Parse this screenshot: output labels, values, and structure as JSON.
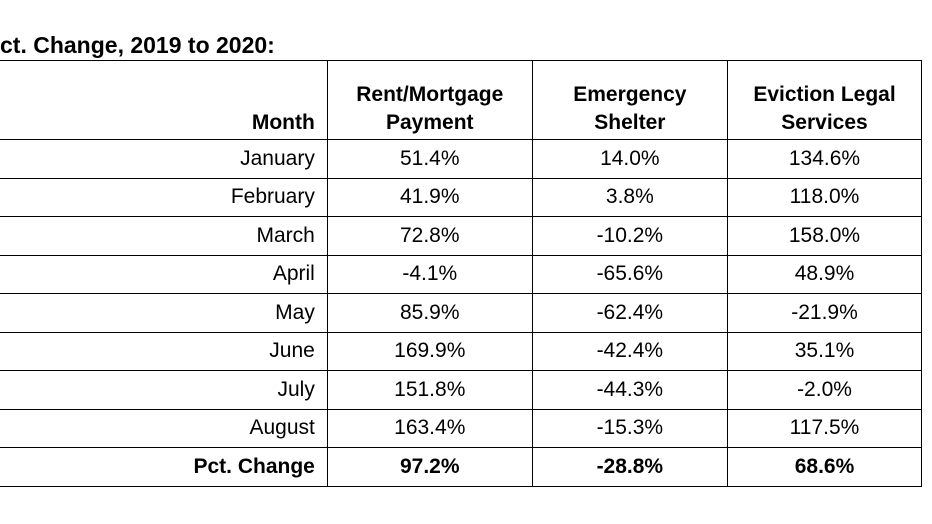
{
  "title": "ct. Change, 2019 to 2020:",
  "table": {
    "headers": [
      "Month",
      "Rent/Mortgage Payment",
      "Emergency Shelter",
      "Eviction Legal Services"
    ],
    "rows": [
      {
        "month": "January",
        "rent": "51.4%",
        "shelter": "14.0%",
        "eviction": "134.6%"
      },
      {
        "month": "February",
        "rent": "41.9%",
        "shelter": "3.8%",
        "eviction": "118.0%"
      },
      {
        "month": "March",
        "rent": "72.8%",
        "shelter": "-10.2%",
        "eviction": "158.0%"
      },
      {
        "month": "April",
        "rent": "-4.1%",
        "shelter": "-65.6%",
        "eviction": "48.9%"
      },
      {
        "month": "May",
        "rent": "85.9%",
        "shelter": "-62.4%",
        "eviction": "-21.9%"
      },
      {
        "month": "June",
        "rent": "169.9%",
        "shelter": "-42.4%",
        "eviction": "35.1%"
      },
      {
        "month": "July",
        "rent": "151.8%",
        "shelter": "-44.3%",
        "eviction": "-2.0%"
      },
      {
        "month": "August",
        "rent": "163.4%",
        "shelter": "-15.3%",
        "eviction": "117.5%"
      }
    ],
    "total": {
      "month": "Pct. Change",
      "rent": "97.2%",
      "shelter": "-28.8%",
      "eviction": "68.6%"
    }
  }
}
